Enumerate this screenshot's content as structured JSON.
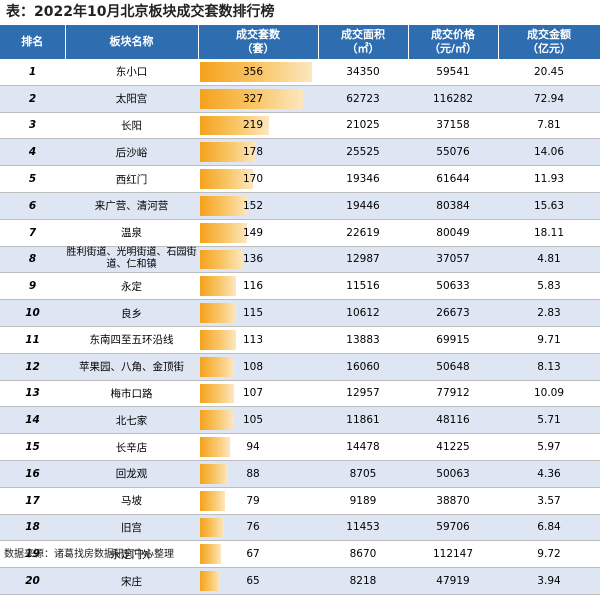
{
  "title": "表：2022年10月北京板块成交套数排行榜",
  "headers": {
    "rank": "排名",
    "name": "板块名称",
    "units_1": "成交套数",
    "units_2": "（套）",
    "area_1": "成交面积",
    "area_2": "（㎡）",
    "price_1": "成交价格",
    "price_2": "（元/㎡）",
    "amount_1": "成交金额",
    "amount_2": "（亿元）"
  },
  "bar_color": "#f5a21c",
  "header_color": "#2f6db1",
  "stripe_color": "#dde6f2",
  "rows": [
    {
      "rank": "1",
      "name": "东小口",
      "units": 356,
      "area": "34350",
      "price": "59541",
      "amount": "20.45"
    },
    {
      "rank": "2",
      "name": "太阳宫",
      "units": 327,
      "area": "62723",
      "price": "116282",
      "amount": "72.94"
    },
    {
      "rank": "3",
      "name": "长阳",
      "units": 219,
      "area": "21025",
      "price": "37158",
      "amount": "7.81"
    },
    {
      "rank": "4",
      "name": "后沙峪",
      "units": 178,
      "area": "25525",
      "price": "55076",
      "amount": "14.06"
    },
    {
      "rank": "5",
      "name": "西红门",
      "units": 170,
      "area": "19346",
      "price": "61644",
      "amount": "11.93"
    },
    {
      "rank": "6",
      "name": "来广营、清河营",
      "units": 152,
      "area": "19446",
      "price": "80384",
      "amount": "15.63"
    },
    {
      "rank": "7",
      "name": "温泉",
      "units": 149,
      "area": "22619",
      "price": "80049",
      "amount": "18.11"
    },
    {
      "rank": "8",
      "name": "胜利街道、光明街道、石园街道、仁和镇",
      "units": 136,
      "area": "12987",
      "price": "37057",
      "amount": "4.81"
    },
    {
      "rank": "9",
      "name": "永定",
      "units": 116,
      "area": "11516",
      "price": "50633",
      "amount": "5.83"
    },
    {
      "rank": "10",
      "name": "良乡",
      "units": 115,
      "area": "10612",
      "price": "26673",
      "amount": "2.83"
    },
    {
      "rank": "11",
      "name": "东南四至五环沿线",
      "units": 113,
      "area": "13883",
      "price": "69915",
      "amount": "9.71"
    },
    {
      "rank": "12",
      "name": "苹果园、八角、金顶街",
      "units": 108,
      "area": "16060",
      "price": "50648",
      "amount": "8.13"
    },
    {
      "rank": "13",
      "name": "梅市口路",
      "units": 107,
      "area": "12957",
      "price": "77912",
      "amount": "10.09"
    },
    {
      "rank": "14",
      "name": "北七家",
      "units": 105,
      "area": "11861",
      "price": "48116",
      "amount": "5.71"
    },
    {
      "rank": "15",
      "name": "长辛店",
      "units": 94,
      "area": "14478",
      "price": "41225",
      "amount": "5.97"
    },
    {
      "rank": "16",
      "name": "回龙观",
      "units": 88,
      "area": "8705",
      "price": "50063",
      "amount": "4.36"
    },
    {
      "rank": "17",
      "name": "马坡",
      "units": 79,
      "area": "9189",
      "price": "38870",
      "amount": "3.57"
    },
    {
      "rank": "18",
      "name": "旧宫",
      "units": 76,
      "area": "11453",
      "price": "59706",
      "amount": "6.84"
    },
    {
      "rank": "19",
      "name": "永定门外",
      "units": 67,
      "area": "8670",
      "price": "112147",
      "amount": "9.72"
    },
    {
      "rank": "20",
      "name": "宋庄",
      "units": 65,
      "area": "8218",
      "price": "47919",
      "amount": "3.94"
    }
  ],
  "source": "数据来源：诸葛找房数据研究中心整理"
}
